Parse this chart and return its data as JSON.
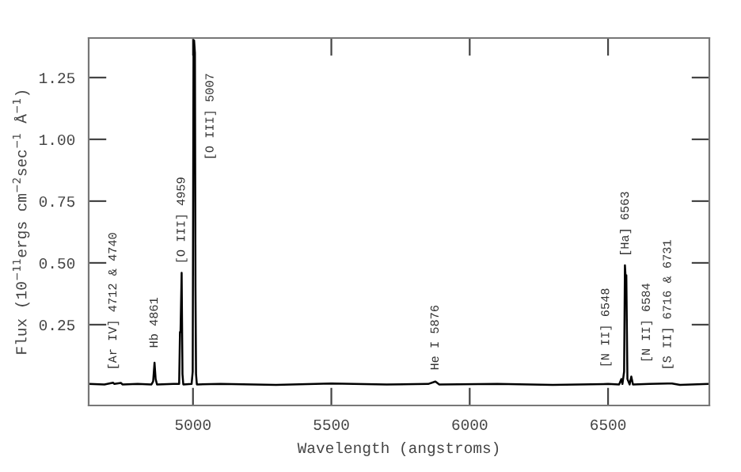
{
  "chart_data": {
    "type": "line",
    "xlabel": "Wavelength (angstroms)",
    "ylabel": "Flux (10$^{−11}$ergs cm$^{−2}$sec$^{−1}$ Å$^{−1}$)",
    "x": [
      4625,
      4680,
      4711,
      4716,
      4740,
      4745,
      4800,
      4850,
      4856,
      4861,
      4865,
      4870,
      4930,
      4950,
      4953,
      4955,
      4959,
      4962,
      4965,
      4995,
      4999,
      5002,
      5004,
      5007,
      5009,
      5011,
      5014,
      5100,
      5300,
      5500,
      5700,
      5850,
      5876,
      5890,
      6100,
      6300,
      6500,
      6540,
      6548,
      6552,
      6558,
      6561,
      6563,
      6566,
      6570,
      6578,
      6584,
      6590,
      6650,
      6716,
      6731,
      6760,
      6860
    ],
    "values": [
      0.01,
      0.008,
      0.015,
      0.01,
      0.014,
      0.008,
      0.01,
      0.008,
      0.02,
      0.096,
      0.03,
      0.008,
      0.01,
      0.01,
      0.22,
      0.22,
      0.46,
      0.05,
      0.008,
      0.01,
      0.06,
      1.4,
      1.4,
      1.35,
      0.4,
      0.05,
      0.008,
      0.01,
      0.006,
      0.012,
      0.008,
      0.01,
      0.02,
      0.008,
      0.01,
      0.006,
      0.01,
      0.008,
      0.03,
      0.01,
      0.06,
      0.49,
      0.45,
      0.45,
      0.03,
      0.008,
      0.04,
      0.008,
      0.01,
      0.012,
      0.012,
      0.006,
      0.01
    ],
    "color": "#000000",
    "xlim": [
      4623,
      6866
    ],
    "ylim": [
      -0.077,
      1.41
    ],
    "xticks": [
      5000,
      5500,
      6000,
      6500
    ],
    "yticks": [
      {
        "value": 0.25,
        "label": "0.25"
      },
      {
        "value": 0.5,
        "label": "0.50"
      },
      {
        "value": 0.75,
        "label": "0.75"
      },
      {
        "value": 1.0,
        "label": "1.00"
      },
      {
        "value": 1.25,
        "label": "1.25"
      }
    ],
    "grid": false,
    "legend": false,
    "marker": "none",
    "line_style": "solid",
    "annotations": [
      {
        "text": "[Ar IV] 4712 & 4740",
        "x": 4712,
        "y": 0.03
      },
      {
        "text": "Hb 4861",
        "x": 4861,
        "y": 0.12
      },
      {
        "text": "[O III] 4959",
        "x": 4959,
        "y": 0.46
      },
      {
        "text": "[O III] 5007",
        "x": 5007,
        "y": 0.88
      },
      {
        "text": "He I 5876",
        "x": 5876,
        "y": 0.03
      },
      {
        "text": "[N II] 6548",
        "x": 6548,
        "y": 0.04
      },
      {
        "text": "[Ha] 6563",
        "x": 6563,
        "y": 0.49
      },
      {
        "text": "[N II] 6584",
        "x": 6584,
        "y": 0.06
      },
      {
        "text": "[S II] 6716 & 6731",
        "x": 6716,
        "y": 0.03
      }
    ]
  }
}
